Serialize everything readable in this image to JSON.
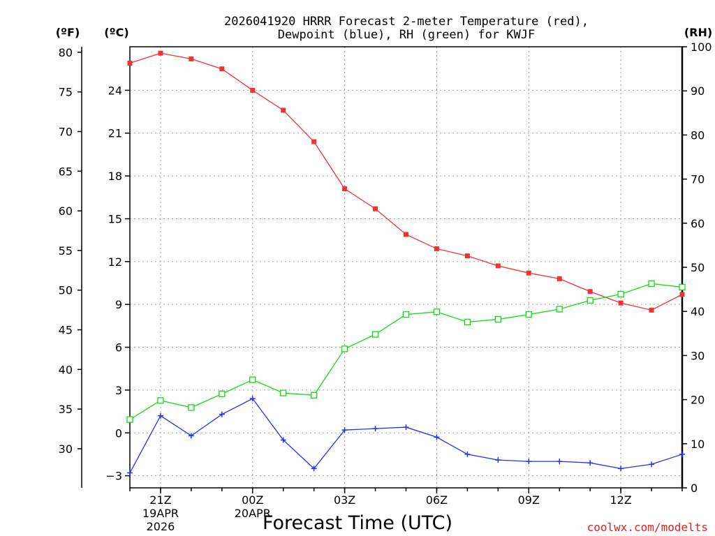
{
  "colors": {
    "temp": "#ee3333",
    "dewpoint": "#2233ee",
    "rh": "#11dd11",
    "credit": "#dd2222",
    "grid": "#a0a0a0"
  },
  "chart_data": {
    "type": "line",
    "title_line1": "2026041920 HRRR Forecast 2-meter Temperature (red),",
    "title_line2": "Dewpoint (blue), RH (green) for KWJF",
    "xlabel": "Forecast Time (UTC)",
    "credit": "coolwx.com/modelts",
    "unit_f": "(ºF)",
    "unit_c": "(ºC)",
    "unit_rh": "(RH)",
    "x": [
      20,
      21,
      22,
      23,
      24,
      25,
      26,
      27,
      28,
      29,
      30,
      31,
      32,
      33,
      34,
      35,
      36,
      37,
      38
    ],
    "xlim": [
      20,
      38
    ],
    "x_ticks": [
      {
        "x": 21,
        "label": "21Z",
        "sub1": "19APR",
        "sub2": "2026"
      },
      {
        "x": 24,
        "label": "00Z",
        "sub1": "20APR",
        "sub2": ""
      },
      {
        "x": 27,
        "label": "03Z",
        "sub1": "",
        "sub2": ""
      },
      {
        "x": 30,
        "label": "06Z",
        "sub1": "",
        "sub2": ""
      },
      {
        "x": 33,
        "label": "09Z",
        "sub1": "",
        "sub2": ""
      },
      {
        "x": 36,
        "label": "12Z",
        "sub1": "",
        "sub2": ""
      }
    ],
    "ylim_c": [
      -3.85,
      27.05
    ],
    "yticks_c": [
      -3,
      0,
      3,
      6,
      9,
      12,
      15,
      18,
      21,
      24
    ],
    "yticks_f": [
      30,
      35,
      40,
      45,
      50,
      55,
      60,
      65,
      70,
      75,
      80
    ],
    "ylim_rh": [
      0,
      100
    ],
    "yticks_rh": [
      0,
      10,
      20,
      30,
      40,
      50,
      60,
      70,
      80,
      90,
      100
    ],
    "series": [
      {
        "name": "2-meter Temperature",
        "unit": "C",
        "color": "#ee3333",
        "marker": "filled-square",
        "values": [
          25.9,
          26.6,
          26.2,
          25.5,
          24.0,
          22.6,
          20.4,
          17.1,
          15.7,
          13.9,
          12.9,
          12.4,
          11.7,
          11.2,
          10.8,
          9.9,
          9.1,
          8.6,
          9.7
        ]
      },
      {
        "name": "Dewpoint",
        "unit": "C",
        "color": "#2233ee",
        "marker": "plus",
        "values": [
          -2.8,
          1.2,
          -0.2,
          1.3,
          2.4,
          -0.5,
          -2.5,
          0.2,
          0.3,
          0.4,
          -0.3,
          -1.5,
          -1.9,
          -2.0,
          -2.0,
          -2.1,
          -2.5,
          -2.2,
          -1.5
        ]
      },
      {
        "name": "RH",
        "unit": "%",
        "color": "#11dd11",
        "marker": "open-square",
        "values": [
          15.5,
          19.8,
          18.2,
          21.3,
          24.5,
          21.5,
          21.0,
          31.5,
          34.8,
          39.3,
          39.9,
          37.6,
          38.2,
          39.3,
          40.5,
          42.5,
          43.9,
          46.3,
          45.5
        ]
      }
    ]
  }
}
